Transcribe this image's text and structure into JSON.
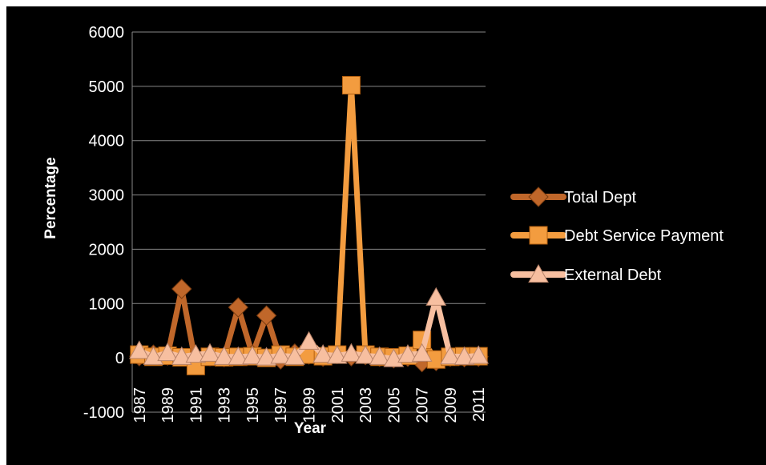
{
  "chart_data": {
    "type": "line",
    "xlabel": "Year",
    "ylabel": "Percentage",
    "ylim": [
      -1000,
      6000
    ],
    "y_ticks": [
      "-1000",
      "0",
      "1000",
      "2000",
      "3000",
      "4000",
      "5000",
      "6000"
    ],
    "x": [
      "1987",
      "1988",
      "1989",
      "1990",
      "1991",
      "1992",
      "1993",
      "1994",
      "1995",
      "1996",
      "1997",
      "1998",
      "1999",
      "2000",
      "2001",
      "2002",
      "2003",
      "2004",
      "2005",
      "2006",
      "2007",
      "2008",
      "2009",
      "2010",
      "2011"
    ],
    "x_tick_labels": [
      "1987",
      "1989",
      "1991",
      "1993",
      "1995",
      "1997",
      "1999",
      "2001",
      "2003",
      "2005",
      "2007",
      "2009",
      "2011"
    ],
    "grid": "horizontal",
    "legend_position": "right",
    "series": [
      {
        "name": "Total Dept",
        "marker": "diamond",
        "color": "#c0672a",
        "values": [
          30,
          60,
          40,
          1270,
          -120,
          30,
          10,
          930,
          60,
          780,
          -30,
          80,
          60,
          20,
          70,
          30,
          50,
          20,
          -10,
          20,
          -80,
          -60,
          20,
          10,
          20
        ]
      },
      {
        "name": "Debt Service Payment",
        "marker": "square",
        "color": "#f39c3f",
        "values": [
          60,
          20,
          40,
          10,
          -150,
          20,
          10,
          20,
          30,
          0,
          60,
          20,
          60,
          30,
          60,
          5020,
          60,
          20,
          10,
          40,
          330,
          -30,
          20,
          30,
          30
        ]
      },
      {
        "name": "External Debt",
        "marker": "triangle",
        "color": "#f7bfa0",
        "values": [
          130,
          20,
          90,
          20,
          60,
          80,
          20,
          20,
          30,
          10,
          40,
          20,
          300,
          60,
          40,
          80,
          40,
          20,
          -20,
          60,
          80,
          1110,
          30,
          20,
          40
        ]
      }
    ]
  }
}
